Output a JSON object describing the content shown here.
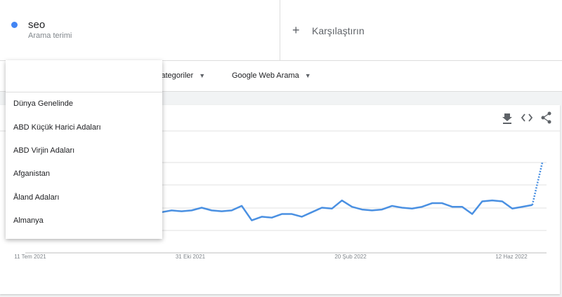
{
  "search_term": {
    "label": "seo",
    "caption": "Arama terimi"
  },
  "compare": {
    "label": "Karşılaştırın"
  },
  "filters": [
    "Kategoriler",
    "Google Web Arama"
  ],
  "dropdown": {
    "items": [
      "Dünya Genelinde",
      "ABD Küçük Harici Adaları",
      "ABD Virjin Adaları",
      "Afganistan",
      "Åland Adaları",
      "Almanya"
    ]
  },
  "chart_data": {
    "type": "line",
    "color": "#4a90e2",
    "ylim": [
      0,
      100
    ],
    "dashed_last": true,
    "x_labels": [
      "11 Tem 2021",
      "31 Eki 2021",
      "20 Şub 2022",
      "12 Haz 2022"
    ],
    "values": [
      45,
      47,
      46,
      47,
      50,
      47,
      46,
      47,
      52,
      36,
      40,
      39,
      43,
      43,
      40,
      45,
      50,
      49,
      58,
      51,
      48,
      47,
      48,
      52,
      50,
      49,
      51,
      55,
      55,
      51,
      51,
      43,
      57,
      58,
      57,
      49,
      51,
      53,
      100
    ]
  }
}
